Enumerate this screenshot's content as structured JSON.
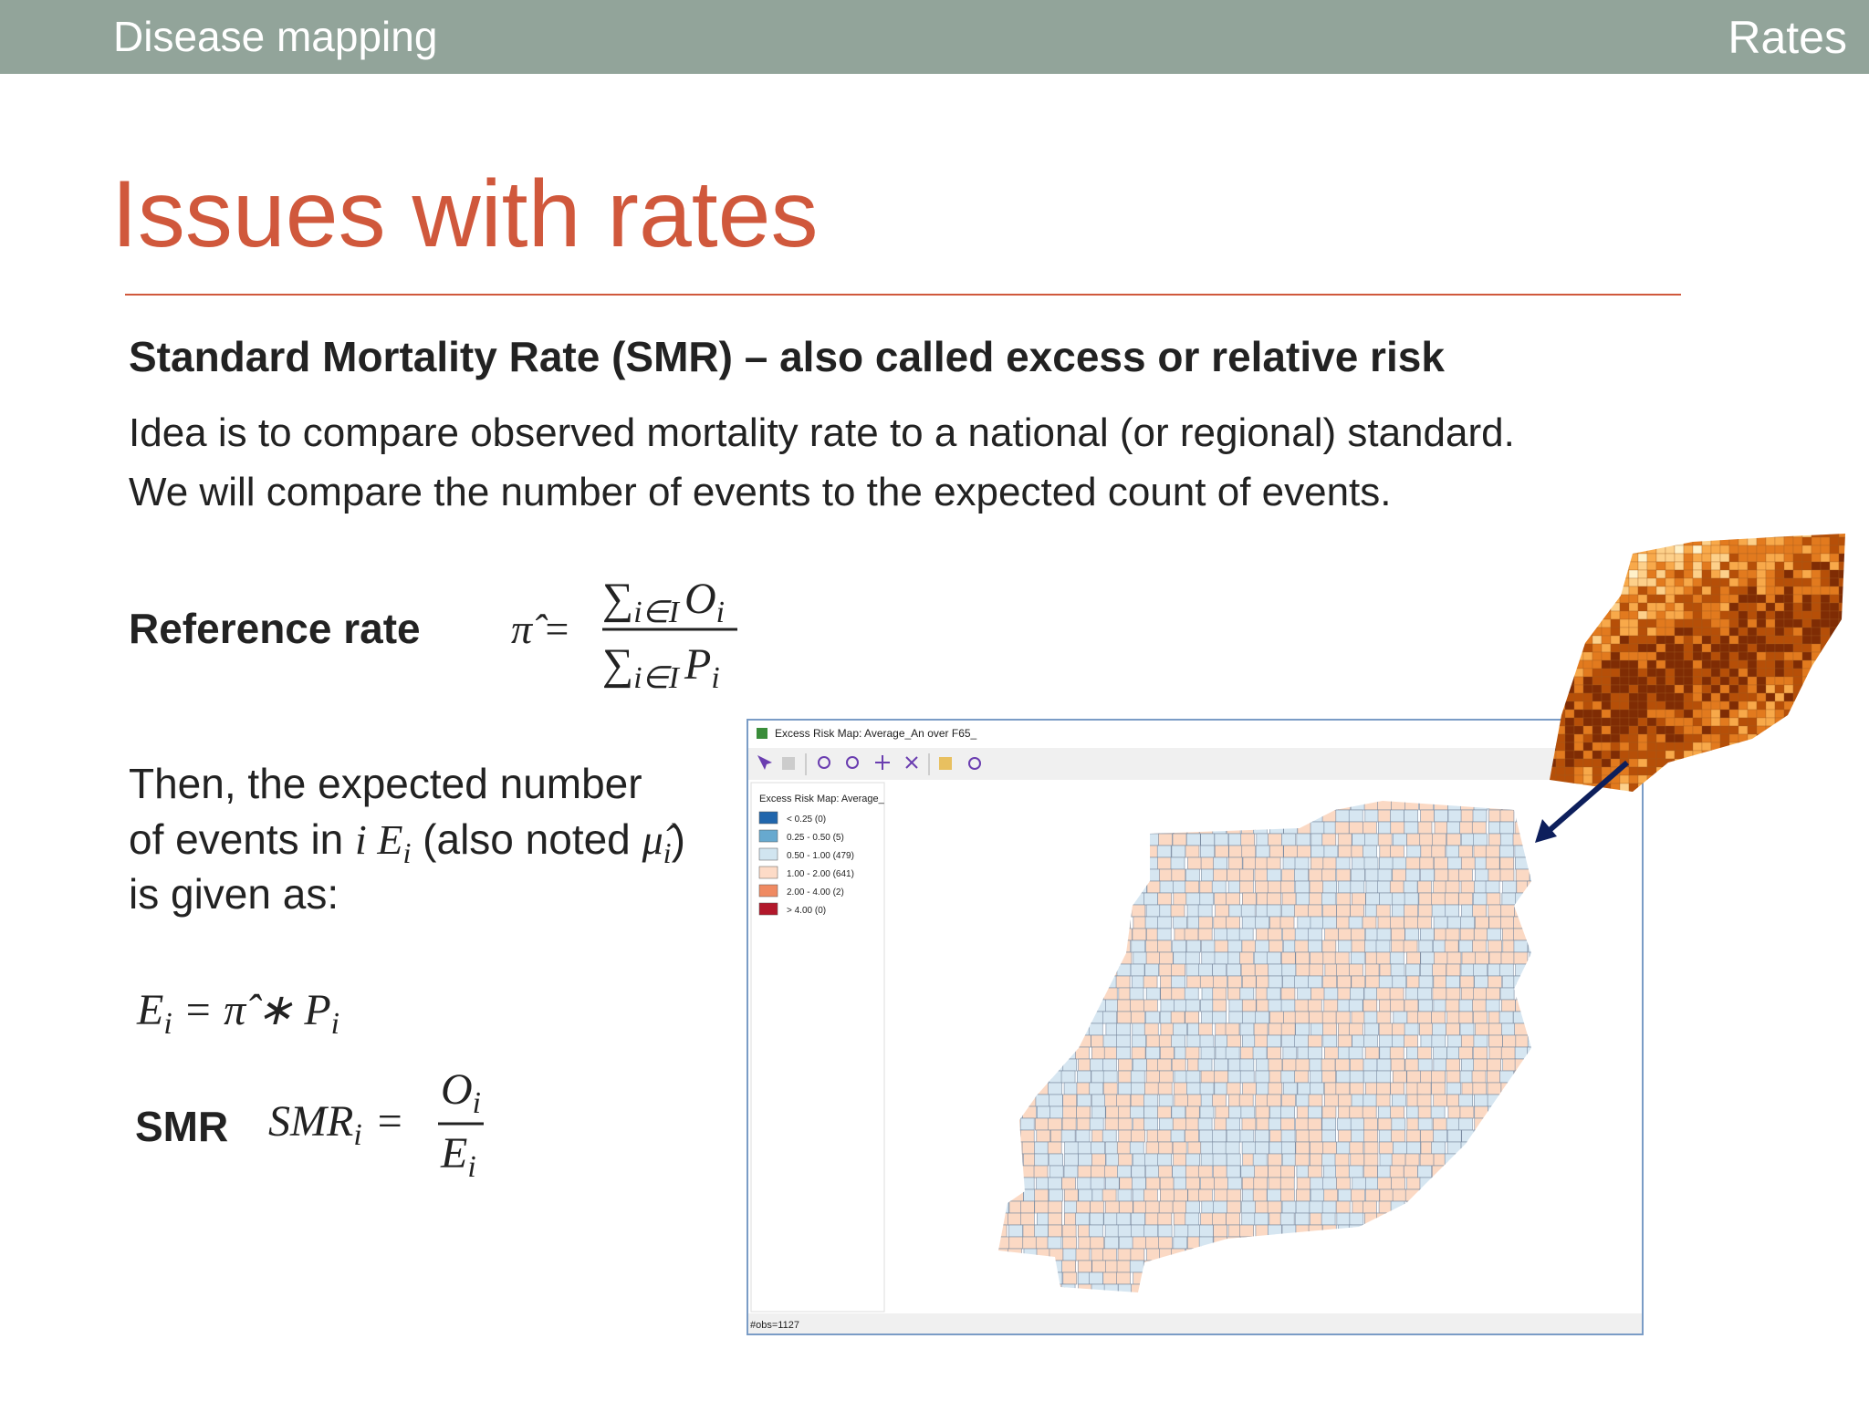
{
  "header": {
    "section": "Disease mapping",
    "topic": "Rates"
  },
  "title": "Issues with rates",
  "subtitle": "Standard Mortality Rate (SMR) – also called excess or relative risk",
  "paragraphs": [
    "Idea is to compare observed mortality rate to a national (or regional) standard.",
    "We will compare the number of events to the expected count of events."
  ],
  "reference_rate": {
    "label": "Reference rate",
    "lhs": "π̂ =",
    "numerator": {
      "symbol": "∑",
      "index": "i∈I",
      "var": "O",
      "var_index": "i"
    },
    "denominator": {
      "symbol": "∑",
      "index": "i∈I",
      "var": "P",
      "var_index": "i"
    }
  },
  "expected_text": {
    "line1": "Then, the expected number",
    "line2_start": "of events in ",
    "line2_i": "i",
    "line2_var": " E",
    "line2_var_index": "i",
    "line2_note": " (also noted ",
    "line2_mu": "μ̂",
    "line2_mu_index": "i",
    "line2_end": ")",
    "line3": "is given as:"
  },
  "expected_formula": {
    "lhs": "E",
    "lhs_index": "i",
    "rhs": " = π̂ ∗ ",
    "var": "P",
    "var_index": "i"
  },
  "smr": {
    "label": "SMR",
    "lhs": "SMR",
    "lhs_index": "i",
    "eq": "=",
    "numerator": "O",
    "numerator_index": "i",
    "denominator": "E",
    "denominator_index": "i"
  },
  "window": {
    "title": "Excess Risk Map: Average_An over F65_",
    "legend_title": "Excess Risk Map: Average_",
    "legend": [
      {
        "label": "< 0.25 (0)",
        "color": "#2166ac"
      },
      {
        "label": "0.25 - 0.50 (5)",
        "color": "#67a9cf"
      },
      {
        "label": "0.50 - 1.00 (479)",
        "color": "#d1e5f0"
      },
      {
        "label": "1.00 - 2.00 (641)",
        "color": "#fddbc7"
      },
      {
        "label": "2.00 - 4.00 (2)",
        "color": "#ef8a62"
      },
      {
        "label": "> 4.00 (0)",
        "color": "#b2182b"
      }
    ],
    "status": "#obs=1127"
  }
}
